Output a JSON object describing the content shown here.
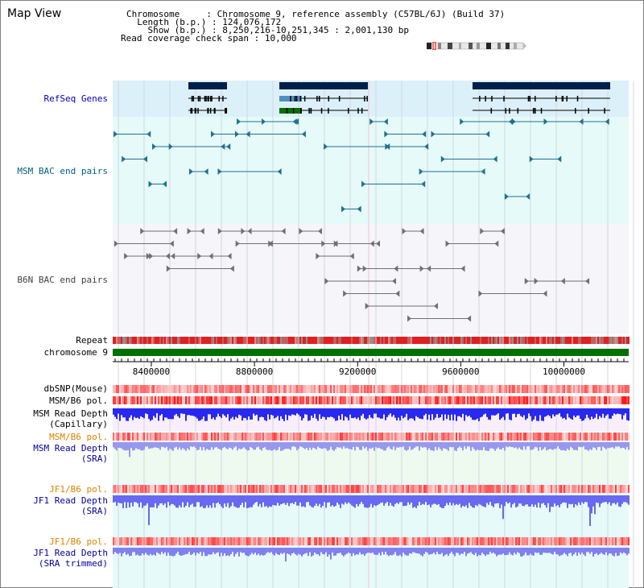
{
  "page": {
    "title": "Map View"
  },
  "header": {
    "chromosome_key": "Chromosome     ",
    "chromosome_val": ": Chromosome 9, reference assembly (C57BL/6J) (Build 37)",
    "length_key": "  Length (b.p.)",
    "length_val": ": 124,076,172",
    "show_key": "    Show (b.p.)",
    "show_val": ": 8,250,216-10,251,345 : 2,001,130 bp",
    "coverage_key": "Read coverage check span",
    "coverage_val": ": 10,000"
  },
  "tracks": {
    "refseq": {
      "label": "RefSeq Genes",
      "color": "#0000c0"
    },
    "msm_bac": {
      "label": "MSM BAC end pairs",
      "color": "#006080"
    },
    "b6n_bac": {
      "label": "B6N BAC end pairs",
      "color": "#404040"
    },
    "repeat": {
      "label": "Repeat"
    },
    "chromosome": {
      "label": "chromosome 9"
    },
    "dbsnp": {
      "label": "dbSNP(Mouse)"
    },
    "msm_b6_pol": {
      "label": "MSM/B6 pol."
    },
    "msm_depth_cap": {
      "label1": "MSM Read Depth",
      "label2": "(Capillary)"
    },
    "msm_b6_pol2": {
      "label": "MSM/B6 pol."
    },
    "msm_depth_sra": {
      "label1": "MSM Read Depth",
      "label2": "(SRA)"
    },
    "jf1_b6_pol": {
      "label": "JF1/B6 pol."
    },
    "jf1_depth_sra": {
      "label1": "JF1 Read Depth",
      "label2": "(SRA)"
    },
    "jf1_b6_pol2": {
      "label": "JF1/B6 pol."
    },
    "jf1_depth_trim": {
      "label1": "JF1 Read Depth",
      "label2": "(SRA trimmed)"
    }
  },
  "ruler": {
    "ticks": [
      "8400000",
      "8800000",
      "9200000",
      "9600000",
      "10000000"
    ],
    "tick_values": [
      8400000,
      8800000,
      9200000,
      9600000,
      10000000
    ],
    "range": [
      8250216,
      10251345
    ]
  },
  "colors": {
    "refseq_bg": "#dcf0fa",
    "bac_bg": "#e6fafa",
    "b6n_bg": "#f5f5fa",
    "gene": "#00204a",
    "depth": "#3030ff",
    "chrom": "#007000",
    "pol_label": "#e08000",
    "depth_label": "#0000a0"
  }
}
